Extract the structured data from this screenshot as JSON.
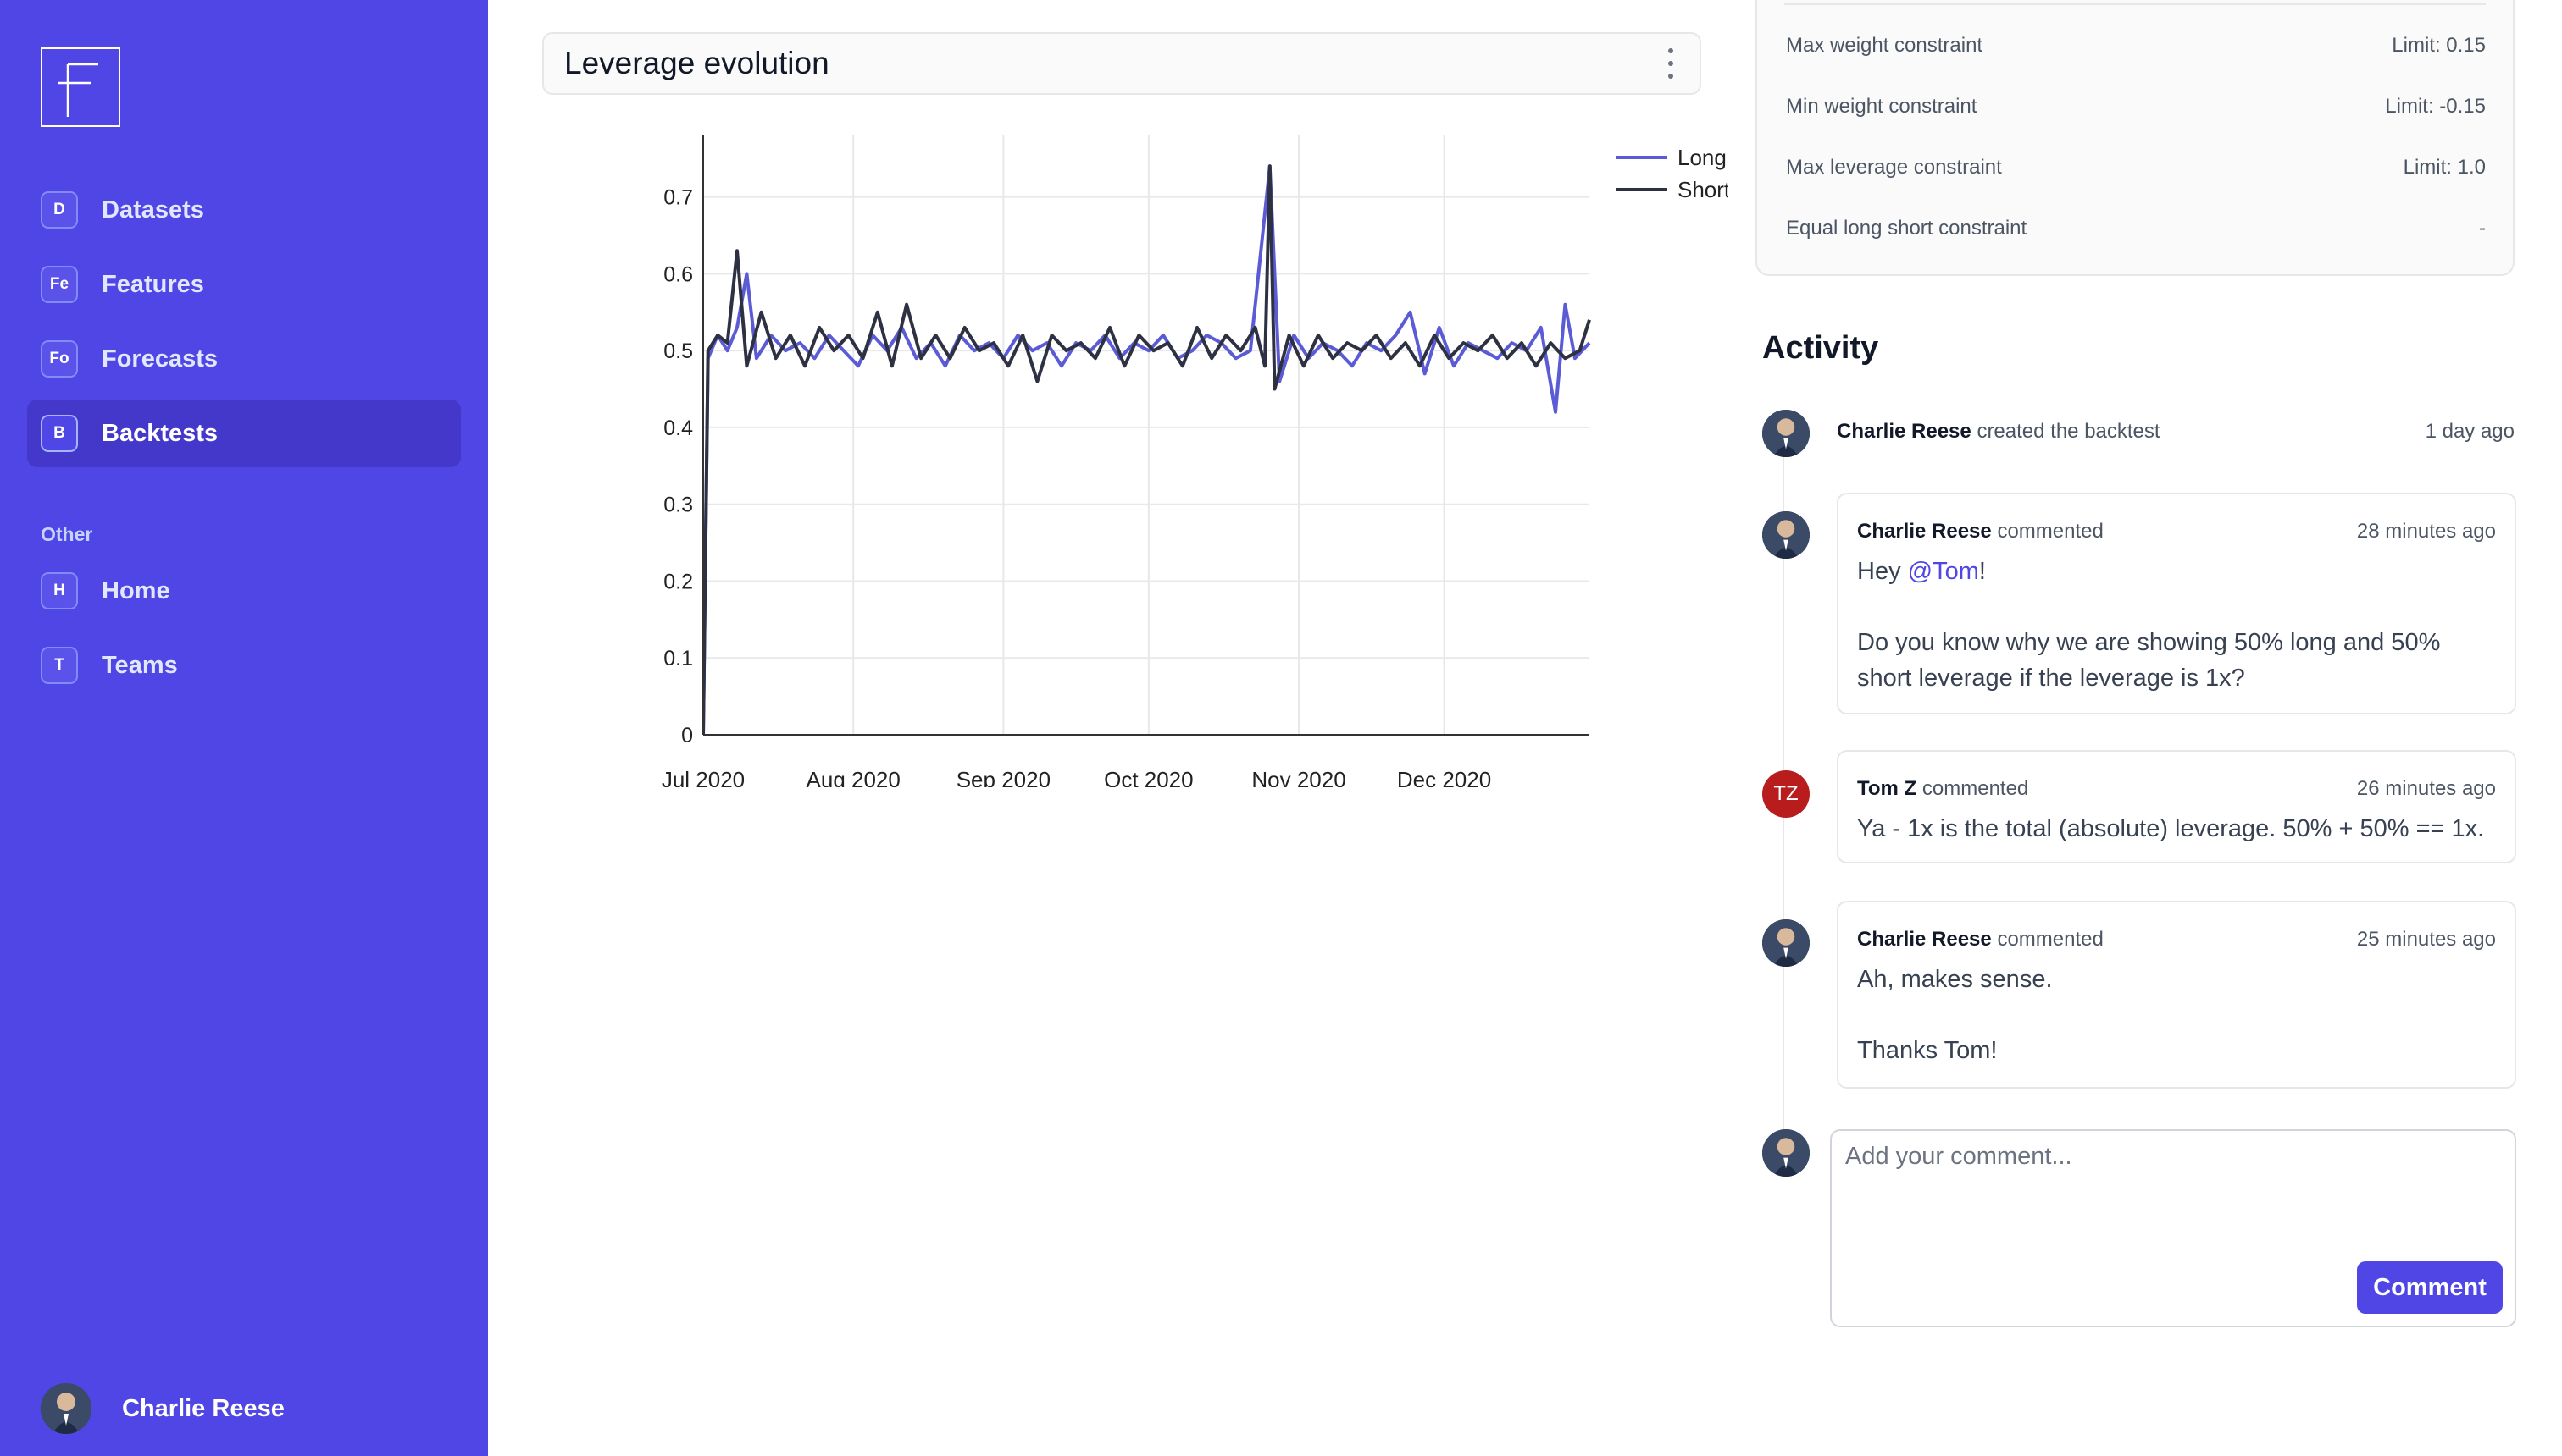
{
  "sidebar": {
    "logo_letter": "F",
    "items": [
      {
        "badge": "D",
        "label": "Datasets",
        "active": false
      },
      {
        "badge": "Fe",
        "label": "Features",
        "active": false
      },
      {
        "badge": "Fo",
        "label": "Forecasts",
        "active": false
      },
      {
        "badge": "B",
        "label": "Backtests",
        "active": true
      }
    ],
    "other_label": "Other",
    "other_items": [
      {
        "badge": "H",
        "label": "Home"
      },
      {
        "badge": "T",
        "label": "Teams"
      }
    ],
    "user": {
      "name": "Charlie Reese"
    }
  },
  "chart_card": {
    "title": "Leverage evolution"
  },
  "chart_data": {
    "type": "line",
    "title": "Leverage evolution",
    "xlabel": "",
    "ylabel": "",
    "x_start": "2020-07-01",
    "x_end": "2020-12-31",
    "x_ticks": [
      "Jul 2020",
      "Aug 2020",
      "Sep 2020",
      "Oct 2020",
      "Nov 2020",
      "Dec 2020"
    ],
    "y_ticks": [
      "0",
      "0.1",
      "0.2",
      "0.3",
      "0.4",
      "0.5",
      "0.6",
      "0.7"
    ],
    "ylim": [
      0,
      0.78
    ],
    "grid": true,
    "legend": "top-right",
    "series": [
      {
        "name": "Long",
        "color": "#5b5bd6",
        "points": [
          [
            "2020-07-01",
            0.0
          ],
          [
            "2020-07-02",
            0.49
          ],
          [
            "2020-07-04",
            0.52
          ],
          [
            "2020-07-06",
            0.5
          ],
          [
            "2020-07-08",
            0.53
          ],
          [
            "2020-07-10",
            0.6
          ],
          [
            "2020-07-12",
            0.49
          ],
          [
            "2020-07-15",
            0.52
          ],
          [
            "2020-07-18",
            0.5
          ],
          [
            "2020-07-21",
            0.51
          ],
          [
            "2020-07-24",
            0.49
          ],
          [
            "2020-07-27",
            0.52
          ],
          [
            "2020-07-30",
            0.5
          ],
          [
            "2020-08-02",
            0.48
          ],
          [
            "2020-08-05",
            0.52
          ],
          [
            "2020-08-08",
            0.5
          ],
          [
            "2020-08-11",
            0.53
          ],
          [
            "2020-08-14",
            0.49
          ],
          [
            "2020-08-17",
            0.51
          ],
          [
            "2020-08-20",
            0.48
          ],
          [
            "2020-08-23",
            0.52
          ],
          [
            "2020-08-26",
            0.5
          ],
          [
            "2020-08-29",
            0.51
          ],
          [
            "2020-09-01",
            0.49
          ],
          [
            "2020-09-04",
            0.52
          ],
          [
            "2020-09-07",
            0.5
          ],
          [
            "2020-09-10",
            0.51
          ],
          [
            "2020-09-13",
            0.48
          ],
          [
            "2020-09-16",
            0.51
          ],
          [
            "2020-09-19",
            0.5
          ],
          [
            "2020-09-22",
            0.52
          ],
          [
            "2020-09-25",
            0.49
          ],
          [
            "2020-09-28",
            0.51
          ],
          [
            "2020-10-01",
            0.5
          ],
          [
            "2020-10-04",
            0.52
          ],
          [
            "2020-10-07",
            0.49
          ],
          [
            "2020-10-10",
            0.5
          ],
          [
            "2020-10-13",
            0.52
          ],
          [
            "2020-10-16",
            0.51
          ],
          [
            "2020-10-19",
            0.49
          ],
          [
            "2020-10-22",
            0.5
          ],
          [
            "2020-10-26",
            0.74
          ],
          [
            "2020-10-28",
            0.46
          ],
          [
            "2020-10-31",
            0.52
          ],
          [
            "2020-11-03",
            0.49
          ],
          [
            "2020-11-06",
            0.51
          ],
          [
            "2020-11-09",
            0.5
          ],
          [
            "2020-11-12",
            0.48
          ],
          [
            "2020-11-15",
            0.51
          ],
          [
            "2020-11-18",
            0.5
          ],
          [
            "2020-11-21",
            0.52
          ],
          [
            "2020-11-24",
            0.55
          ],
          [
            "2020-11-27",
            0.47
          ],
          [
            "2020-11-30",
            0.53
          ],
          [
            "2020-12-03",
            0.48
          ],
          [
            "2020-12-06",
            0.51
          ],
          [
            "2020-12-09",
            0.5
          ],
          [
            "2020-12-12",
            0.49
          ],
          [
            "2020-12-15",
            0.51
          ],
          [
            "2020-12-18",
            0.5
          ],
          [
            "2020-12-21",
            0.53
          ],
          [
            "2020-12-24",
            0.42
          ],
          [
            "2020-12-26",
            0.56
          ],
          [
            "2020-12-28",
            0.49
          ],
          [
            "2020-12-31",
            0.51
          ]
        ]
      },
      {
        "name": "Short",
        "color": "#2d3142",
        "points": [
          [
            "2020-07-01",
            0.0
          ],
          [
            "2020-07-02",
            0.5
          ],
          [
            "2020-07-04",
            0.52
          ],
          [
            "2020-07-06",
            0.51
          ],
          [
            "2020-07-08",
            0.63
          ],
          [
            "2020-07-10",
            0.48
          ],
          [
            "2020-07-13",
            0.55
          ],
          [
            "2020-07-16",
            0.49
          ],
          [
            "2020-07-19",
            0.52
          ],
          [
            "2020-07-22",
            0.48
          ],
          [
            "2020-07-25",
            0.53
          ],
          [
            "2020-07-28",
            0.5
          ],
          [
            "2020-07-31",
            0.52
          ],
          [
            "2020-08-03",
            0.49
          ],
          [
            "2020-08-06",
            0.55
          ],
          [
            "2020-08-09",
            0.48
          ],
          [
            "2020-08-12",
            0.56
          ],
          [
            "2020-08-15",
            0.49
          ],
          [
            "2020-08-18",
            0.52
          ],
          [
            "2020-08-21",
            0.49
          ],
          [
            "2020-08-24",
            0.53
          ],
          [
            "2020-08-27",
            0.5
          ],
          [
            "2020-08-30",
            0.51
          ],
          [
            "2020-09-02",
            0.48
          ],
          [
            "2020-09-05",
            0.52
          ],
          [
            "2020-09-08",
            0.46
          ],
          [
            "2020-09-11",
            0.52
          ],
          [
            "2020-09-14",
            0.5
          ],
          [
            "2020-09-17",
            0.51
          ],
          [
            "2020-09-20",
            0.49
          ],
          [
            "2020-09-23",
            0.53
          ],
          [
            "2020-09-26",
            0.48
          ],
          [
            "2020-09-29",
            0.52
          ],
          [
            "2020-10-02",
            0.5
          ],
          [
            "2020-10-05",
            0.51
          ],
          [
            "2020-10-08",
            0.48
          ],
          [
            "2020-10-11",
            0.53
          ],
          [
            "2020-10-14",
            0.49
          ],
          [
            "2020-10-17",
            0.52
          ],
          [
            "2020-10-20",
            0.5
          ],
          [
            "2020-10-23",
            0.53
          ],
          [
            "2020-10-25",
            0.48
          ],
          [
            "2020-10-26",
            0.74
          ],
          [
            "2020-10-27",
            0.45
          ],
          [
            "2020-10-30",
            0.52
          ],
          [
            "2020-11-02",
            0.48
          ],
          [
            "2020-11-05",
            0.52
          ],
          [
            "2020-11-08",
            0.49
          ],
          [
            "2020-11-11",
            0.51
          ],
          [
            "2020-11-14",
            0.5
          ],
          [
            "2020-11-17",
            0.52
          ],
          [
            "2020-11-20",
            0.49
          ],
          [
            "2020-11-23",
            0.51
          ],
          [
            "2020-11-26",
            0.48
          ],
          [
            "2020-11-29",
            0.52
          ],
          [
            "2020-12-02",
            0.49
          ],
          [
            "2020-12-05",
            0.51
          ],
          [
            "2020-12-08",
            0.5
          ],
          [
            "2020-12-11",
            0.52
          ],
          [
            "2020-12-14",
            0.49
          ],
          [
            "2020-12-17",
            0.51
          ],
          [
            "2020-12-20",
            0.48
          ],
          [
            "2020-12-23",
            0.51
          ],
          [
            "2020-12-26",
            0.49
          ],
          [
            "2020-12-29",
            0.5
          ],
          [
            "2020-12-31",
            0.54
          ]
        ]
      }
    ]
  },
  "constraints": [
    {
      "label": "Max weight constraint",
      "value": "Limit: 0.15"
    },
    {
      "label": "Min weight constraint",
      "value": "Limit: -0.15"
    },
    {
      "label": "Max leverage constraint",
      "value": "Limit: 1.0"
    },
    {
      "label": "Equal long short constraint",
      "value": "-"
    }
  ],
  "activity": {
    "title": "Activity",
    "event": {
      "user": "Charlie Reese",
      "action": "created the backtest",
      "time": "1 day ago"
    },
    "comments": [
      {
        "user": "Charlie Reese",
        "verb": "commented",
        "time": "28 minutes ago",
        "mention_prefix": "Hey ",
        "mention": "@Tom",
        "mention_suffix": "!",
        "text": "Do you know why we are showing 50% long and 50% short leverage if the leverage is 1x?"
      },
      {
        "user": "Tom Z",
        "initials": "TZ",
        "verb": "commented",
        "time": "26 minutes ago",
        "text": "Ya - 1x is the total (absolute) leverage. 50% + 50% == 1x."
      },
      {
        "user": "Charlie Reese",
        "verb": "commented",
        "time": "25 minutes ago",
        "line1": "Ah, makes sense.",
        "line2": "Thanks Tom!"
      }
    ],
    "comment_box": {
      "placeholder": "Add your comment...",
      "button_label": "Comment"
    }
  }
}
